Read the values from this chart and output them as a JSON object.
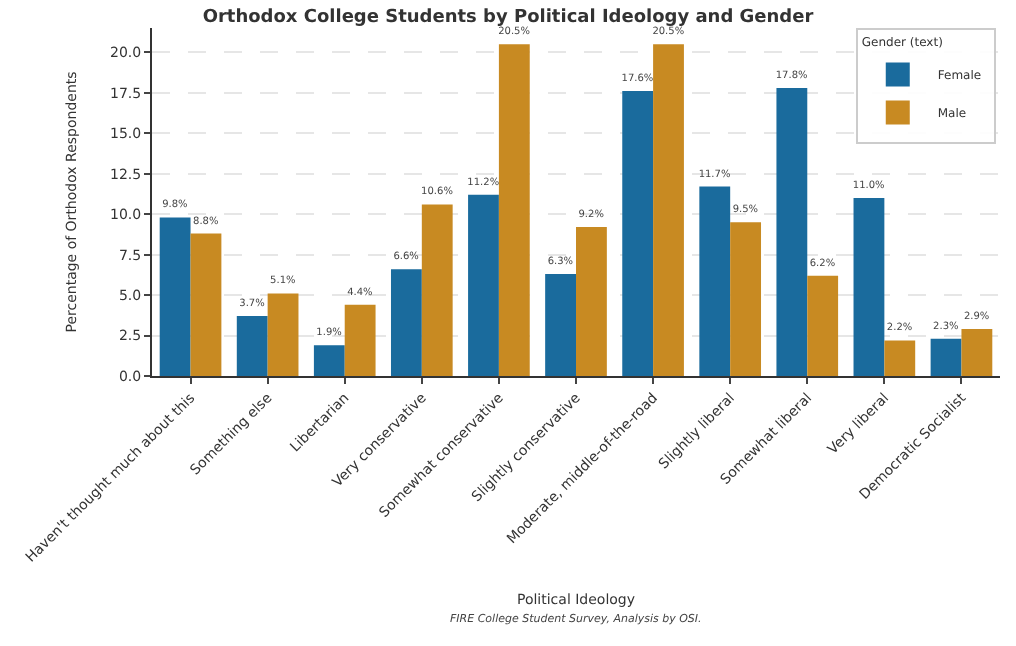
{
  "chart_data": {
    "type": "bar",
    "title": "Orthodox College Students by Political Ideology and Gender",
    "xlabel": "Political Ideology",
    "ylabel": "Percentage of Orthodox Respondents",
    "legend_title": "Gender (text)",
    "categories": [
      "Haven't thought much about this",
      "Something else",
      "Libertarian",
      "Very conservative",
      "Somewhat conservative",
      "Slightly conservative",
      "Moderate, middle-of-the-road",
      "Slightly liberal",
      "Somewhat liberal",
      "Very liberal",
      "Democratic Socialist"
    ],
    "series": [
      {
        "name": "Female",
        "color": "#1a6b9d",
        "values": [
          9.8,
          3.7,
          1.9,
          6.6,
          11.2,
          6.3,
          17.6,
          11.7,
          17.8,
          11.0,
          2.3
        ],
        "value_labels": [
          "9.8%",
          "3.7%",
          "1.9%",
          "6.6%",
          "11.2%",
          "6.3%",
          "17.6%",
          "11.7%",
          "17.8%",
          "11.0%",
          "2.3%"
        ]
      },
      {
        "name": "Male",
        "color": "#c88a22",
        "values": [
          8.8,
          5.1,
          4.4,
          10.6,
          20.5,
          9.2,
          20.5,
          9.5,
          6.2,
          2.2,
          2.9
        ],
        "value_labels": [
          "8.8%",
          "5.1%",
          "4.4%",
          "10.6%",
          "20.5%",
          "9.2%",
          "20.5%",
          "9.5%",
          "6.2%",
          "2.2%",
          "2.9%"
        ]
      }
    ],
    "ylim": [
      0,
      21.5
    ],
    "yticks": [
      {
        "value": 0,
        "label": "0.0"
      },
      {
        "value": 2.5,
        "label": "2.5"
      },
      {
        "value": 5,
        "label": "5.0"
      },
      {
        "value": 7.5,
        "label": "7.5"
      },
      {
        "value": 10,
        "label": "10.0"
      },
      {
        "value": 12.5,
        "label": "12.5"
      },
      {
        "value": 15,
        "label": "15.0"
      },
      {
        "value": 17.5,
        "label": "17.5"
      },
      {
        "value": 20,
        "label": "20.0"
      }
    ],
    "grid": "y",
    "legend": "top right",
    "annotations": [
      "FIRE College Student Survey, Analysis by OSI."
    ]
  }
}
